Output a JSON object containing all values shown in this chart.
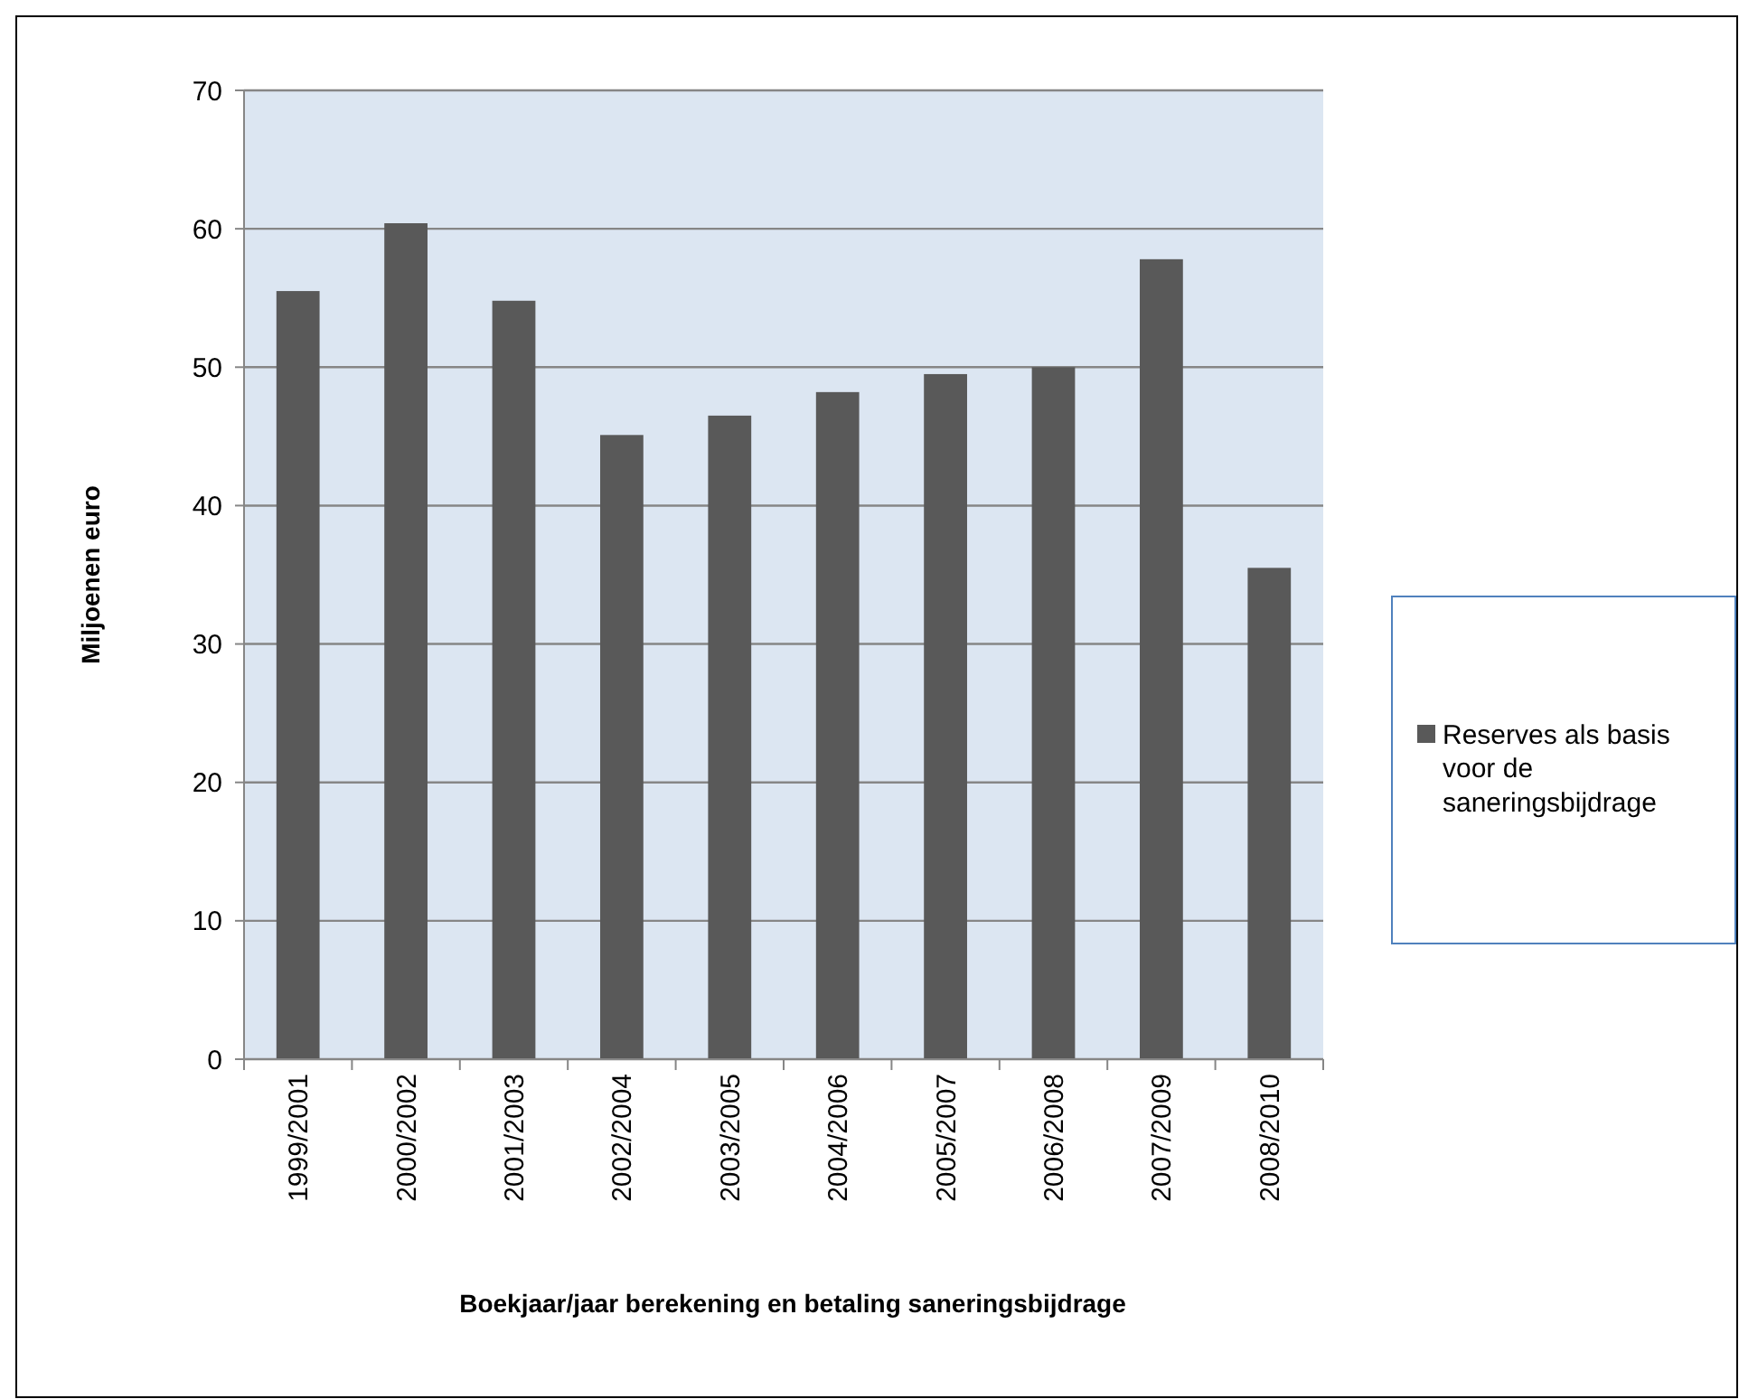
{
  "chart_data": {
    "type": "bar",
    "xlabel": "Boekjaar/jaar berekening en betaling saneringsbijdrage",
    "ylabel": "Miljoenen euro",
    "categories": [
      "1999/2001",
      "2000/2002",
      "2001/2003",
      "2002/2004",
      "2003/2005",
      "2004/2006",
      "2005/2007",
      "2006/2008",
      "2007/2009",
      "2008/2010"
    ],
    "series": [
      {
        "name": "Reserves als basis voor de saneringsbijdrage",
        "color": "#595959",
        "values": [
          55.5,
          60.4,
          54.8,
          45.1,
          46.5,
          48.2,
          49.5,
          50.0,
          57.8,
          35.5
        ]
      }
    ],
    "ylim": [
      0,
      70
    ],
    "yticks": [
      0,
      10,
      20,
      30,
      40,
      50,
      60,
      70
    ],
    "grid": "y",
    "legend": "right"
  }
}
